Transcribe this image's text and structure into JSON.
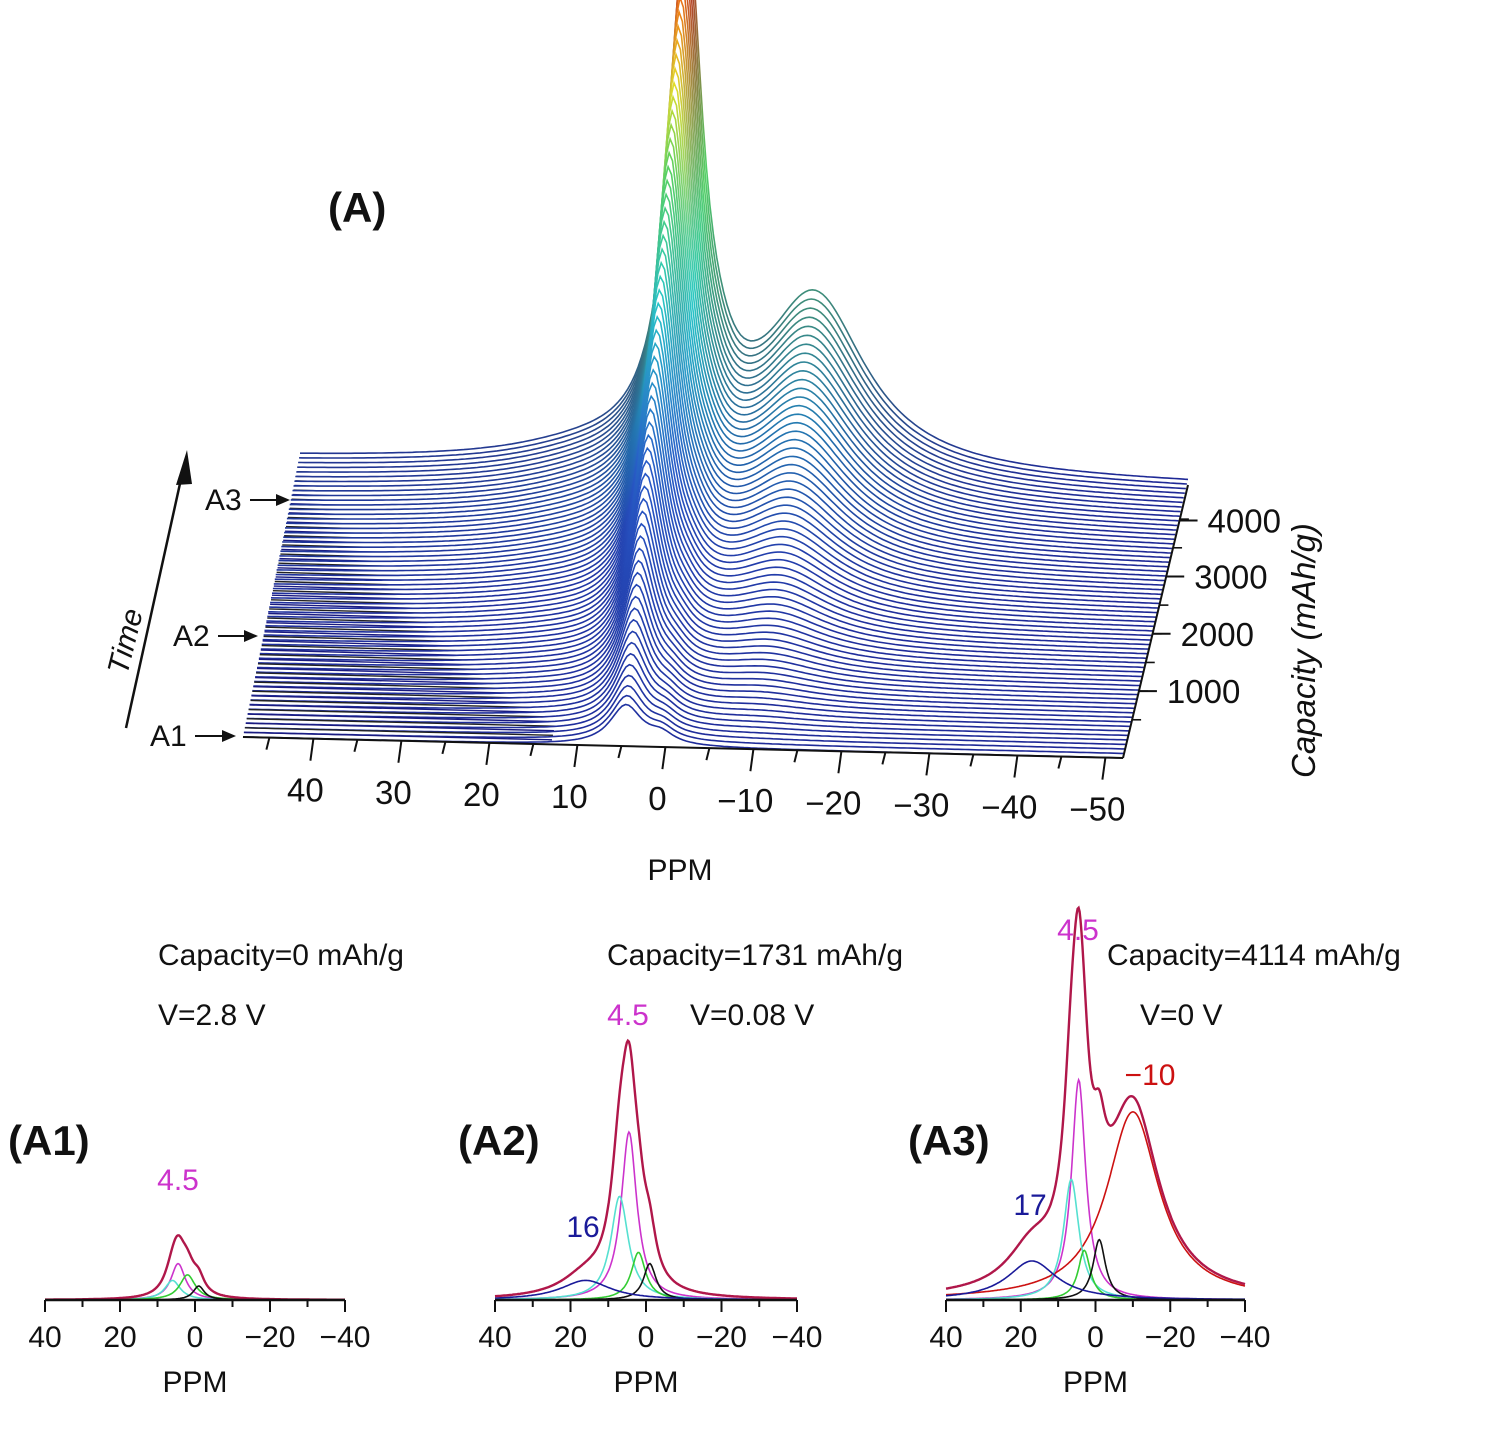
{
  "colors": {
    "peak_4_5": "#cc33cc",
    "peak_16_17": "#1a1a99",
    "peak_minus10": "#cc1111",
    "envelope": "#b0174a",
    "fit_cyan": "#55e0d0",
    "fit_green": "#33cc33",
    "fit_black": "#111111",
    "fit_blue": "#1a1a99"
  },
  "chart_data": [
    {
      "type": "line",
      "panel_label": "(A)",
      "subtype": "stacked-3d-waterfall",
      "xlabel": "PPM",
      "x_ticks": [
        "40",
        "30",
        "20",
        "10",
        "0",
        "−10",
        "−20",
        "−30",
        "−40",
        "−50"
      ],
      "xlim": [
        48,
        -52
      ],
      "depth_label": "Capacity (mAh/g)",
      "depth_ticks": [
        "1000",
        "2000",
        "3000",
        "4000"
      ],
      "time_label": "Time",
      "spectrum_markers": [
        "A1",
        "A2",
        "A3"
      ],
      "peak_height_start": 0.2,
      "peak_height_end": 2.6,
      "shoulder_height_end": 0.85
    },
    {
      "type": "line",
      "panel_label": "(A1)",
      "capacity_text": "Capacity=0 mAh/g",
      "voltage_text": "V=2.8 V",
      "xlabel": "PPM",
      "x_ticks": [
        "40",
        "20",
        "0",
        "−20",
        "−40"
      ],
      "xlim": [
        40,
        -40
      ],
      "ylim": [
        0,
        1
      ],
      "annotations": [
        {
          "text": "4.5",
          "x": 4.5,
          "color": "#cc33cc"
        }
      ],
      "series": [
        {
          "name": "",
          "color": "#b0174a",
          "type": "envelope",
          "center": 4.5,
          "height": 0.21
        },
        {
          "name": "",
          "color": "#cc33cc",
          "center": 4.5,
          "height": 0.13,
          "width": 2.3
        },
        {
          "name": "",
          "color": "#55e0d0",
          "center": 6,
          "height": 0.07,
          "width": 2.5
        },
        {
          "name": "",
          "color": "#33cc33",
          "center": 2,
          "height": 0.09,
          "width": 2.5
        },
        {
          "name": "",
          "color": "#111111",
          "center": -1,
          "height": 0.05,
          "width": 1.8
        }
      ]
    },
    {
      "type": "line",
      "panel_label": "(A2)",
      "capacity_text": "Capacity=1731 mAh/g",
      "voltage_text": "V=0.08 V",
      "xlabel": "PPM",
      "x_ticks": [
        "40",
        "20",
        "0",
        "−20",
        "−40"
      ],
      "xlim": [
        40,
        -40
      ],
      "ylim": [
        0,
        1
      ],
      "annotations": [
        {
          "text": "4.5",
          "x": 4.5,
          "color": "#cc33cc"
        },
        {
          "text": "16",
          "x": 16,
          "color": "#1a1a99"
        }
      ],
      "series": [
        {
          "name": "",
          "color": "#b0174a",
          "type": "envelope",
          "center": 4.5,
          "height": 0.74
        },
        {
          "name": "",
          "color": "#cc33cc",
          "center": 4.5,
          "height": 0.6,
          "width": 2.5
        },
        {
          "name": "",
          "color": "#55e0d0",
          "center": 7,
          "height": 0.37,
          "width": 2.8
        },
        {
          "name": "",
          "color": "#33cc33",
          "center": 2,
          "height": 0.17,
          "width": 2.3
        },
        {
          "name": "",
          "color": "#111111",
          "center": -1,
          "height": 0.13,
          "width": 2.0
        },
        {
          "name": "",
          "color": "#1a1a99",
          "center": 16,
          "height": 0.07,
          "width": 8
        }
      ]
    },
    {
      "type": "line",
      "panel_label": "(A3)",
      "capacity_text": "Capacity=4114 mAh/g",
      "voltage_text": "V=0 V",
      "xlabel": "PPM",
      "x_ticks": [
        "40",
        "20",
        "0",
        "−20",
        "−40"
      ],
      "xlim": [
        40,
        -40
      ],
      "ylim": [
        0,
        1
      ],
      "annotations": [
        {
          "text": "4.5",
          "x": 4.5,
          "color": "#cc33cc"
        },
        {
          "text": "17",
          "x": 17,
          "color": "#1a1a99"
        },
        {
          "text": "−10",
          "x": -10,
          "color": "#cc1111"
        }
      ],
      "series": [
        {
          "name": "",
          "color": "#b0174a",
          "type": "envelope",
          "center": 4.5,
          "height": 1.0
        },
        {
          "name": "",
          "color": "#cc33cc",
          "center": 4.5,
          "height": 0.62,
          "width": 2.3
        },
        {
          "name": "",
          "color": "#cc1111",
          "center": -10,
          "height": 0.53,
          "width": 8.5
        },
        {
          "name": "",
          "color": "#55e0d0",
          "center": 6.5,
          "height": 0.34,
          "width": 2.5
        },
        {
          "name": "",
          "color": "#33cc33",
          "center": 3,
          "height": 0.14,
          "width": 2.0
        },
        {
          "name": "",
          "color": "#111111",
          "center": -1,
          "height": 0.17,
          "width": 2.0
        },
        {
          "name": "",
          "color": "#1a1a99",
          "center": 17,
          "height": 0.11,
          "width": 8
        }
      ]
    }
  ]
}
